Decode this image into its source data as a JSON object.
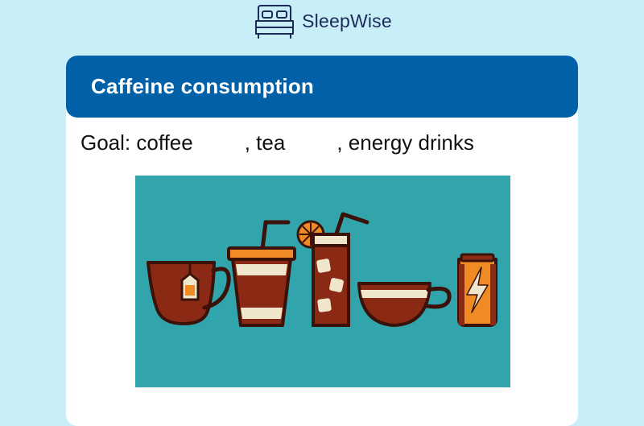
{
  "brand": {
    "name": "SleepWise",
    "logo_icon": "bed-icon"
  },
  "card": {
    "title": "Caffeine consumption",
    "goal": {
      "prefix": "Goal: coffee",
      "sep_tea": ", tea",
      "sep_energy": ", energy drinks",
      "coffee_value": "",
      "tea_value": "",
      "energy_value": ""
    },
    "illustration": {
      "icon": "caffeinated-drinks-illustration",
      "items": [
        "tea-mug-icon",
        "takeaway-cup-icon",
        "iced-drink-icon",
        "coffee-cup-icon",
        "energy-drink-can-icon"
      ]
    }
  },
  "colors": {
    "background": "#c8eef8",
    "header": "#0060a8",
    "illustration_bg": "#31a4ac",
    "drink_brown": "#8b2a14",
    "accent_orange": "#f08a24"
  }
}
